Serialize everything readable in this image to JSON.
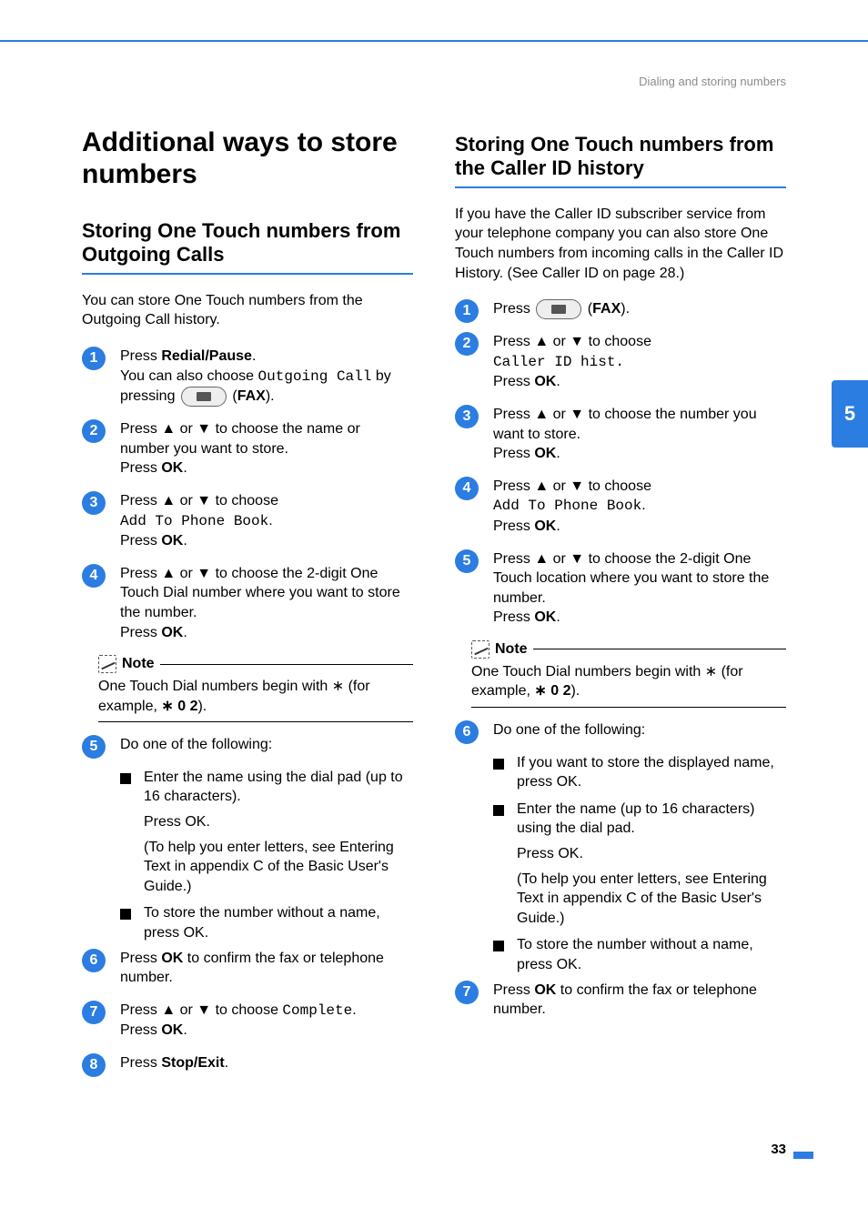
{
  "header": {
    "breadcrumb": "Dialing and storing numbers",
    "chapter_tab": "5",
    "page_number": "33"
  },
  "left": {
    "h1": "Additional ways to store numbers",
    "h2": "Storing One Touch numbers from Outgoing Calls",
    "intro": "You can store One Touch numbers from the Outgoing Call history.",
    "steps": {
      "s1a": "Press ",
      "s1b": "Redial/Pause",
      "s1c": ".",
      "s1d": "You can also choose ",
      "s1e": "Outgoing Call",
      "s1f": " by pressing ",
      "s1g": "FAX",
      "s1h": ").",
      "s2": "Press ▲ or ▼ to choose the name or number you want to store.",
      "s2b": "Press ",
      "s2ok": "OK",
      "s3a": "Press ▲ or ▼ to choose",
      "s3mono": "Add To Phone Book",
      "s3c": "Press ",
      "s4a": "Press ▲ or ▼ to choose the 2-digit One Touch Dial number where you want to store the number.",
      "s4b": "Press ",
      "s5": "Do one of the following:",
      "s5sub1": "Enter the name using the dial pad (up to 16 characters).",
      "s5press": "Press ",
      "s5help": "(To help you enter letters, see ",
      "s5help_i1": "Entering Text",
      "s5help_mid": " in ",
      "s5help_i2": "appendix C",
      "s5help_end": " of the ",
      "s5help_i3": "Basic User's Guide",
      "s5help_fin": ".)",
      "s5sub2a": "To store the number without a name, press ",
      "s6a": "Press ",
      "s6b": " to confirm the fax or telephone number.",
      "s7a": "Press ▲ or ▼ to choose ",
      "s7mono": "Complete",
      "s7c": "Press ",
      "s8a": "Press ",
      "s8b": "Stop/Exit"
    },
    "note": {
      "title": "Note",
      "body_a": "One Touch Dial numbers begin with ",
      "body_star": "∗",
      "body_b": " (for example, ",
      "body_c": "∗ 0 2",
      "body_d": ")."
    }
  },
  "right": {
    "h2": "Storing One Touch numbers from the Caller ID history",
    "intro_a": "If you have the Caller ID subscriber service from your telephone company you can also store One Touch numbers from incoming calls in the Caller ID History. (See ",
    "intro_i": "Caller ID",
    "intro_b": " on page 28.)",
    "steps": {
      "s1a": "Press ",
      "s1g": "FAX",
      "s1h": ").",
      "s2a": "Press ▲ or ▼ to choose",
      "s2mono": "Caller ID hist.",
      "s2c": "Press ",
      "ok": "OK",
      "s3a": "Press ▲ or ▼ to choose the number you want to store.",
      "s3c": "Press ",
      "s4a": "Press ▲ or ▼ to choose",
      "s4mono": "Add To Phone Book",
      "s4c": "Press ",
      "s5a": "Press ▲ or ▼ to choose the 2-digit One Touch location where you want to store the number.",
      "s5c": "Press ",
      "s6": "Do one of the following:",
      "s6sub1a": "If you want to store the displayed name, press ",
      "s6sub2": "Enter the name (up to 16 characters) using the dial pad.",
      "s6press": "Press ",
      "s6help": "(To help you enter letters, see ",
      "s6help_i1": "Entering Text",
      "s6help_mid": " in ",
      "s6help_i2": "appendix C",
      "s6help_end": " of the ",
      "s6help_i3": "Basic User's Guide",
      "s6help_fin": ".)",
      "s6sub3a": "To store the number without a name, press ",
      "s7a": "Press ",
      "s7b": " to confirm the fax or telephone number."
    },
    "note": {
      "title": "Note",
      "body_a": "One Touch Dial numbers begin with ",
      "body_star": "∗",
      "body_b": " (for example, ",
      "body_c": "∗ 0 2",
      "body_d": ")."
    }
  }
}
